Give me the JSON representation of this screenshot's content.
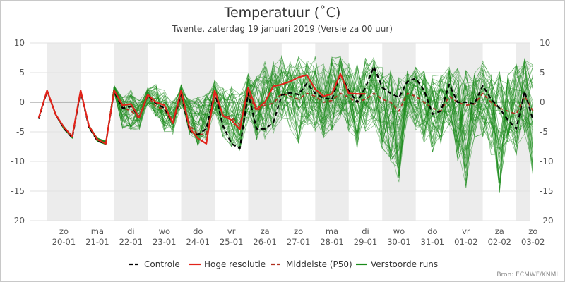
{
  "chart_data": {
    "type": "line",
    "title": "Temperatuur (˚C)",
    "subtitle": "Twente, zaterdag 19 januari 2019 (Versie za 00 uur)",
    "credit": "Bron: ECMWF/KNMI",
    "ylim": [
      -20,
      10
    ],
    "yticks": [
      "10",
      "5",
      "0",
      "-5",
      "-10",
      "-15",
      "-20"
    ],
    "ytick_values": [
      10,
      5,
      0,
      -5,
      -10,
      -15,
      -20
    ],
    "xlim_days": [
      0,
      14.9
    ],
    "shaded_days": [
      [
        0.5,
        1.5
      ],
      [
        2.5,
        3.5
      ],
      [
        4.5,
        5.5
      ],
      [
        6.5,
        7.5
      ],
      [
        8.5,
        9.5
      ],
      [
        10.5,
        11.5
      ],
      [
        12.5,
        13.5
      ],
      [
        14.5,
        14.9
      ]
    ],
    "day_labels": [
      {
        "weekday": "zo",
        "date": "20-01",
        "x": 1.0
      },
      {
        "weekday": "ma",
        "date": "21-01",
        "x": 2.0
      },
      {
        "weekday": "di",
        "date": "22-01",
        "x": 3.0
      },
      {
        "weekday": "wo",
        "date": "23-01",
        "x": 4.0
      },
      {
        "weekday": "do",
        "date": "24-01",
        "x": 5.0
      },
      {
        "weekday": "vr",
        "date": "25-01",
        "x": 6.0
      },
      {
        "weekday": "za",
        "date": "26-01",
        "x": 7.0
      },
      {
        "weekday": "zo",
        "date": "27-01",
        "x": 8.0
      },
      {
        "weekday": "ma",
        "date": "28-01",
        "x": 9.0
      },
      {
        "weekday": "di",
        "date": "29-01",
        "x": 10.0
      },
      {
        "weekday": "wo",
        "date": "30-01",
        "x": 11.0
      },
      {
        "weekday": "do",
        "date": "31-01",
        "x": 12.0
      },
      {
        "weekday": "vr",
        "date": "01-02",
        "x": 13.0
      },
      {
        "weekday": "za",
        "date": "02-02",
        "x": 14.0
      },
      {
        "weekday": "zo",
        "date": "03-02",
        "x": 15.0
      }
    ],
    "legend": [
      {
        "label": "Controle",
        "color": "#000000",
        "dash": "dash"
      },
      {
        "label": "Hoge resolutie",
        "color": "#e2231a",
        "dash": "solid"
      },
      {
        "label": "Middelste (P50)",
        "color": "#b03020",
        "dash": "dash"
      },
      {
        "label": "Verstoorde runs",
        "color": "#1a8a1a",
        "dash": "solid"
      }
    ],
    "series": [
      {
        "name": "Hoge resolutie",
        "color": "#e2231a",
        "x": [
          0.25,
          0.5,
          0.75,
          1.0,
          1.25,
          1.5,
          1.75,
          2.0,
          2.25,
          2.5,
          2.75,
          3.0,
          3.25,
          3.5,
          3.75,
          4.0,
          4.25,
          4.5,
          4.75,
          5.0,
          5.25,
          5.5,
          5.75,
          6.0,
          6.25,
          6.5,
          6.75,
          7.0,
          7.25,
          7.5,
          7.75,
          8.0,
          8.25,
          8.5,
          8.75,
          9.0,
          9.25,
          9.5,
          9.75,
          10.0
        ],
        "values": [
          -2.6,
          2.0,
          -2.0,
          -4.2,
          -5.8,
          2.0,
          -4.0,
          -6.3,
          -7.0,
          2.0,
          -0.5,
          -0.3,
          -2.6,
          1.3,
          0.0,
          -0.5,
          -3.5,
          2.0,
          -4.4,
          -6.1,
          -7.0,
          2.0,
          -2.3,
          -3.0,
          -4.6,
          2.5,
          -1.2,
          0.0,
          2.7,
          3.0,
          3.5,
          4.2,
          4.6,
          2.2,
          1.0,
          1.4,
          4.8,
          1.5,
          1.4,
          1.4
        ]
      },
      {
        "name": "Controle",
        "color": "#000000",
        "x": [
          0.25,
          0.5,
          0.75,
          1.0,
          1.25,
          1.5,
          1.75,
          2.0,
          2.25,
          2.5,
          2.75,
          3.0,
          3.25,
          3.5,
          3.75,
          4.0,
          4.25,
          4.5,
          4.75,
          5.0,
          5.25,
          5.5,
          5.75,
          6.0,
          6.25,
          6.5,
          6.75,
          7.0,
          7.25,
          7.5,
          7.75,
          8.0,
          8.25,
          8.5,
          8.75,
          9.0,
          9.25,
          9.5,
          9.75,
          10.0,
          10.25,
          10.5,
          10.75,
          11.0,
          11.25,
          11.5,
          11.75,
          12.0,
          12.25,
          12.5,
          12.75,
          13.0,
          13.25,
          13.5,
          13.75,
          14.0,
          14.25,
          14.5,
          14.75,
          15.0
        ],
        "values": [
          -2.8,
          1.9,
          -2.0,
          -4.4,
          -6.0,
          1.8,
          -4.2,
          -6.5,
          -7.0,
          1.8,
          -1.0,
          -0.7,
          -2.5,
          1.2,
          -0.2,
          -1.0,
          -3.5,
          1.5,
          -4.8,
          -5.5,
          -4.5,
          1.8,
          -4.0,
          -7.0,
          -7.8,
          1.5,
          -4.5,
          -4.5,
          -3.5,
          1.2,
          1.6,
          1.3,
          3.2,
          1.5,
          0.7,
          0.5,
          4.7,
          2.0,
          0.0,
          2.5,
          6.0,
          2.5,
          1.5,
          0.8,
          3.5,
          4.0,
          2.0,
          -2.0,
          -1.5,
          3.0,
          0.0,
          0.0,
          -0.3,
          2.8,
          0.5,
          -1.0,
          -3.0,
          -4.5,
          1.8,
          -3.0
        ]
      },
      {
        "name": "Middelste (P50)",
        "color": "#b03020",
        "x": [
          0.25,
          0.5,
          0.75,
          1.0,
          1.25,
          1.5,
          1.75,
          2.0,
          2.25,
          2.5,
          2.75,
          3.0,
          3.25,
          3.5,
          3.75,
          4.0,
          4.25,
          4.5,
          4.75,
          5.0,
          5.25,
          5.5,
          5.75,
          6.0,
          6.25,
          6.5,
          6.75,
          7.0,
          7.25,
          7.5,
          7.75,
          8.0,
          8.25,
          8.5,
          8.75,
          9.0,
          9.25,
          9.5,
          9.75,
          10.0,
          10.25,
          10.5,
          10.75,
          11.0,
          11.25,
          11.5,
          11.75,
          12.0,
          12.25,
          12.5,
          12.75,
          13.0,
          13.25,
          13.5,
          13.75,
          14.0,
          14.25,
          14.5,
          14.75,
          15.0
        ],
        "values": [
          -2.7,
          1.9,
          -2.1,
          -4.4,
          -5.9,
          1.9,
          -4.1,
          -6.4,
          -7.0,
          1.9,
          -1.0,
          -1.4,
          -2.8,
          1.0,
          -0.7,
          -1.2,
          -3.6,
          1.0,
          -3.9,
          -5.4,
          -5.4,
          1.0,
          -2.2,
          -2.6,
          -3.8,
          1.5,
          -1.5,
          -0.5,
          -0.2,
          1.5,
          1.0,
          0.5,
          1.5,
          1.0,
          0.0,
          0.3,
          1.5,
          0.8,
          0.0,
          0.5,
          1.5,
          0.5,
          0.0,
          -1.5,
          1.5,
          1.0,
          0.0,
          -1.0,
          -1.5,
          1.0,
          0.0,
          -0.5,
          -0.3,
          1.5,
          0.0,
          -1.0,
          -1.5,
          -2.0,
          1.0,
          -1.5
        ]
      }
    ],
    "ensemble": {
      "name": "Verstoorde runs",
      "color": "#1a8a1a",
      "members_drawn": 50,
      "x": [
        0.25,
        0.5,
        0.75,
        1.0,
        1.25,
        1.5,
        1.75,
        2.0,
        2.25,
        2.5,
        2.75,
        3.0,
        3.25,
        3.5,
        3.75,
        4.0,
        4.25,
        4.5,
        4.75,
        5.0,
        5.25,
        5.5,
        5.75,
        6.0,
        6.25,
        6.5,
        6.75,
        7.0,
        7.25,
        7.5,
        7.75,
        8.0,
        8.25,
        8.5,
        8.75,
        9.0,
        9.25,
        9.5,
        9.75,
        10.0,
        10.25,
        10.5,
        10.75,
        11.0,
        11.25,
        11.5,
        11.75,
        12.0,
        12.25,
        12.5,
        12.75,
        13.0,
        13.25,
        13.5,
        13.75,
        14.0,
        14.25,
        14.5,
        14.75,
        15.0
      ],
      "low": [
        -2.8,
        1.8,
        -2.3,
        -4.6,
        -6.1,
        1.7,
        -4.4,
        -6.7,
        -7.2,
        1.5,
        -4.5,
        -5.0,
        -4.8,
        -0.5,
        -2.5,
        -5.0,
        -5.5,
        -1.0,
        -5.5,
        -7.5,
        -7.0,
        -2.0,
        -6.5,
        -7.5,
        -8.5,
        -3.0,
        -6.5,
        -6.5,
        -5.5,
        -3.5,
        -4.5,
        -7.0,
        -4.0,
        -5.0,
        -6.5,
        -5.0,
        -3.0,
        -5.0,
        -8.0,
        -5.0,
        -4.0,
        -8.0,
        -10.0,
        -13.5,
        -3.0,
        -5.0,
        -7.0,
        -8.5,
        -7.5,
        -4.0,
        -10.0,
        -14.5,
        -6.0,
        -6.0,
        -9.0,
        -15.5,
        -7.0,
        -9.5,
        -5.5,
        -12.5
      ],
      "high": [
        -2.5,
        2.1,
        -1.8,
        -4.0,
        -5.6,
        2.1,
        -3.8,
        -6.0,
        -6.5,
        3.0,
        1.0,
        2.5,
        0.5,
        2.5,
        3.0,
        2.0,
        0.5,
        3.0,
        1.0,
        1.0,
        1.5,
        4.0,
        2.5,
        3.0,
        1.5,
        5.0,
        4.5,
        7.0,
        7.5,
        8.0,
        7.0,
        8.0,
        7.5,
        8.5,
        6.5,
        8.0,
        8.0,
        7.0,
        6.5,
        7.5,
        8.0,
        6.5,
        5.5,
        5.0,
        5.5,
        6.0,
        5.5,
        4.5,
        5.0,
        6.5,
        6.0,
        5.5,
        5.0,
        7.0,
        5.5,
        5.5,
        5.0,
        7.0,
        7.5,
        6.5
      ]
    }
  }
}
